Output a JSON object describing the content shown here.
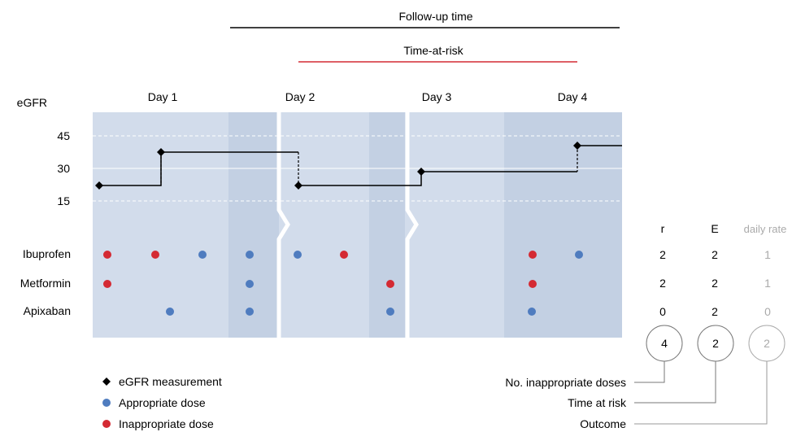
{
  "header": {
    "followup_label": "Follow-up time",
    "timeatrisk_label": "Time-at-risk"
  },
  "axis": {
    "ylabel": "eGFR",
    "ticks": [
      "45",
      "30",
      "15"
    ]
  },
  "days": [
    "Day 1",
    "Day 2",
    "Day 3",
    "Day 4"
  ],
  "drugs": [
    "Ibuprofen",
    "Metformin",
    "Apixaban"
  ],
  "columns": {
    "headers": [
      "r",
      "E",
      "daily rate"
    ],
    "rows": [
      [
        "2",
        "2",
        "1"
      ],
      [
        "2",
        "2",
        "1"
      ],
      [
        "0",
        "2",
        "0"
      ]
    ],
    "totals": [
      "4",
      "2",
      "2"
    ]
  },
  "legend": {
    "egfr": "eGFR measurement",
    "appropriate": "Appropriate dose",
    "inappropriate": "Inappropriate dose"
  },
  "annotations": {
    "inappropriate_count": "No. inappropriate doses",
    "time_at_risk": "Time at risk",
    "outcome": "Outcome"
  },
  "colors": {
    "panel": "#d2dceb",
    "panel_dark": "#c3d0e3",
    "appropriate": "#4f7cbf",
    "inappropriate": "#d42a33",
    "risk_line": "#d42a33",
    "muted_text": "#aaaaaa"
  },
  "chart_data": {
    "type": "line",
    "title": "",
    "xlabel": "",
    "ylabel": "eGFR",
    "ylim": [
      0,
      50
    ],
    "categories": [
      "Day 1",
      "Day 2",
      "Day 3",
      "Day 4"
    ],
    "series": [
      {
        "values": [
          21,
          37,
          21,
          28,
          40
        ],
        "x": [
          0.05,
          0.5,
          1.1,
          2.05,
          3.05
        ]
      }
    ]
  }
}
